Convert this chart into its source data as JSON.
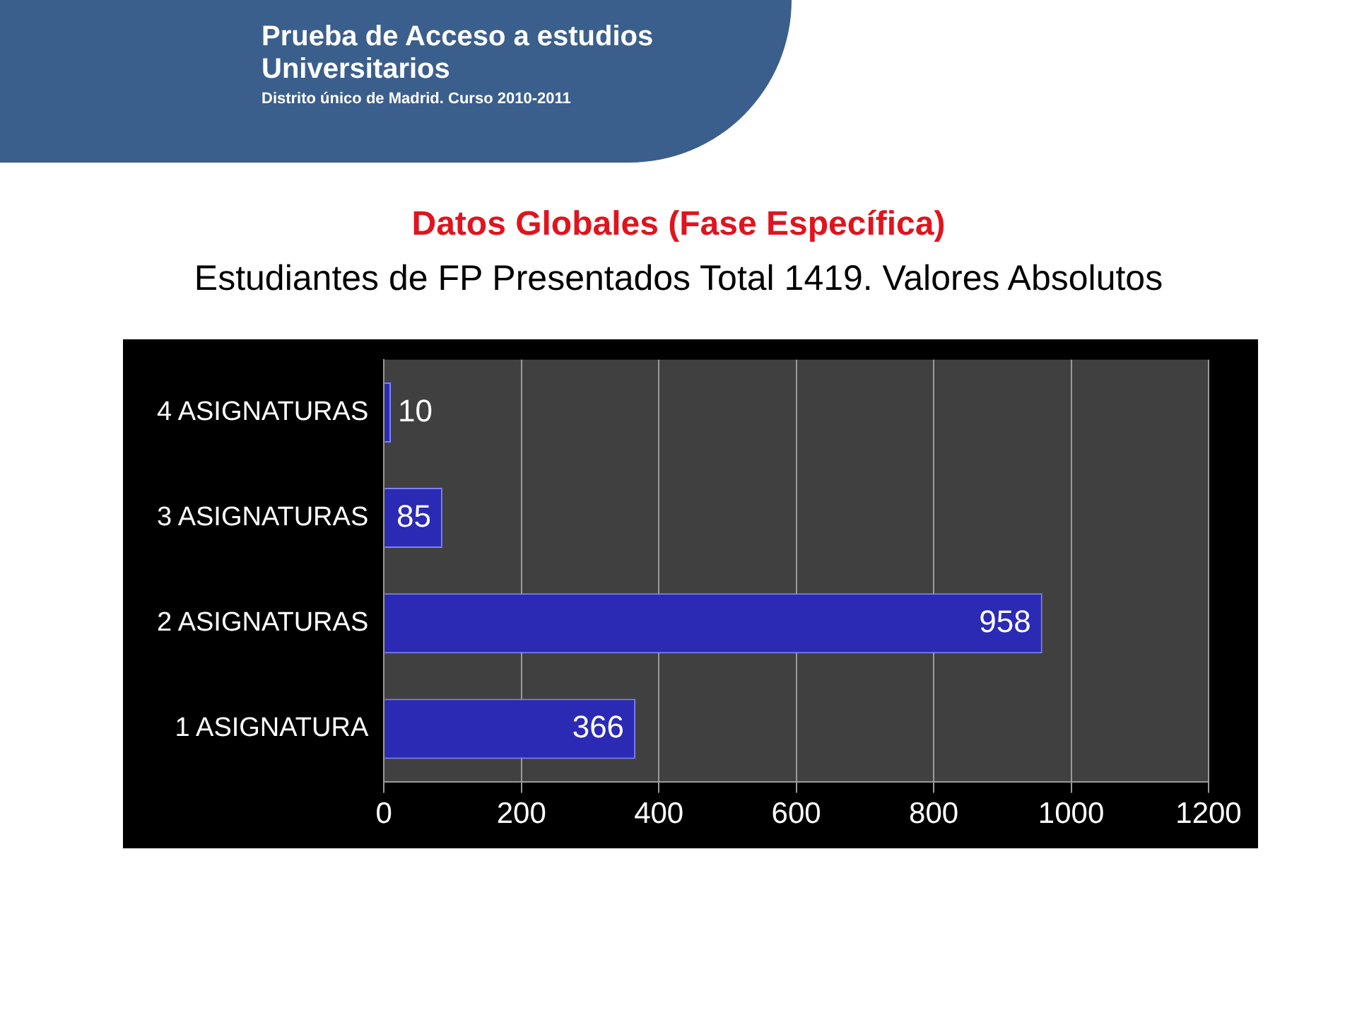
{
  "chart_data": {
    "type": "bar",
    "orientation": "horizontal",
    "title": "Datos Globales (Fase Específica)",
    "subtitle": "Estudiantes de FP Presentados  Total 1419. Valores Absolutos",
    "annotations": [
      "Prueba de Acceso a estudios Universitarios",
      "Distrito único de Madrid. Curso 2010-2011"
    ],
    "categories": [
      "4 ASIGNATURAS",
      "3 ASIGNATURAS",
      "2 ASIGNATURAS",
      "1 ASIGNATURA"
    ],
    "values": [
      10,
      85,
      958,
      366
    ],
    "color": "#2a2ab4",
    "data_labels": true,
    "xlim": [
      0,
      1200
    ],
    "xticks": [
      0,
      200,
      400,
      600,
      800,
      1000,
      1200
    ],
    "grid": "x",
    "legend": false
  }
}
